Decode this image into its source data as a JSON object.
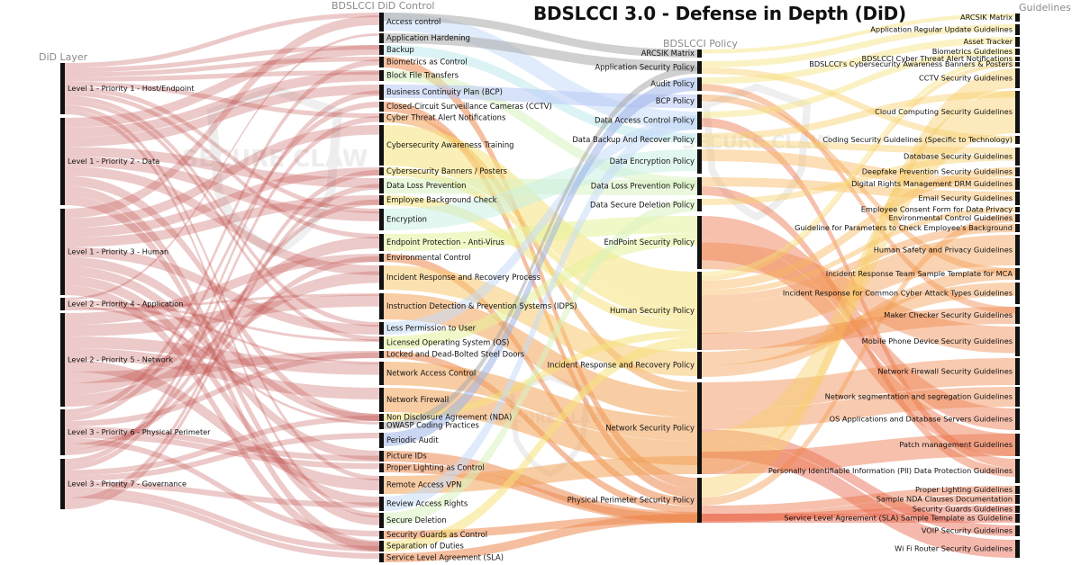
{
  "title": "BDSLCCI 3.0 - Defense in Depth (DiD)",
  "column_headers": {
    "layer": "DiD Layer",
    "control": "BDSLCCI DiD Control",
    "policy": "BDSLCCI Policy",
    "guideline": "Guidelines"
  },
  "watermark_text": "SECURE CLAW",
  "colors": {
    "layer_flow": "#c0504d",
    "node": "#111111",
    "policy_flows": [
      "#a9a9a9",
      "#9fb4e8",
      "#b8c9f5",
      "#c6ddf8",
      "#bfe9ec",
      "#c8f0e4",
      "#d8f2c0",
      "#e6f29a",
      "#f6e27a",
      "#f8c870",
      "#f2a45a",
      "#ec8a50"
    ]
  },
  "layers": [
    "Level 1 - Priority 1 - Host/Endpoint",
    "Level 1 - Priority 2 - Data",
    "Level 1 - Priority 3 - Human",
    "Level 2 - Priority 4 - Application",
    "Level 2 - Priority 5 - Network",
    "Level 3 - Priority 6 - Physical Perimeter",
    "Level 3 - Priority 7 - Governance"
  ],
  "controls": [
    "Access control",
    "Application Hardening",
    "Backup",
    "Biometrics as Control",
    "Block File Transfers",
    "Business Continuity Plan (BCP)",
    "Closed-Circuit Surveillance Cameras (CCTV)",
    "Cyber Threat Alert Notifications",
    "Cybersecurity Awareness Training",
    "Cybersecurity Banners / Posters",
    "Data Loss Prevention",
    "Employee Background Check",
    "Encryption",
    "Endpoint Protection - Anti-Virus",
    "Environmental Control",
    "Incident Response and Recovery Process",
    "Instruction Detection & Prevention Systems (IDPS)",
    "Less Permission to User",
    "Licensed Operating System (OS)",
    "Locked and Dead-Bolted Steel Doors",
    "Network Access Control",
    "Network Firewall",
    "Non Disclosure Agreement (NDA)",
    "OWASP Coding Practices",
    "Periodic Audit",
    "Picture IDs",
    "Proper Lighting as Control",
    "Remote Access VPN",
    "Review Access Rights",
    "Secure Deletion",
    "Security Guards as Control",
    "Separation of Duties",
    "Service Level Agreement (SLA)"
  ],
  "policies": [
    "ARCSIK Matrix",
    "Application Security Policy",
    "Audit Policy",
    "BCP Policy",
    "Data Access Control Policy",
    "Data Backup And Recover Policy",
    "Data Encryption Policy",
    "Data Loss Prevention Policy",
    "Data Secure Deletion Policy",
    "EndPoint Security Policy",
    "Human Security Policy",
    "Incident Response and Recovery Policy",
    "Network Security Policy",
    "Physical Perimeter Security Policy"
  ],
  "guidelines": [
    "ARCSIK Matrix",
    "Application Regular Update Guidelines",
    "Asset Tracker",
    "Biometrics Guidelines",
    "BDSLCCI Cyber Threat Alert Notifications",
    "BDSLCCI's Cybersecurity Awareness Banners & Posters",
    "CCTV Security Guidelines",
    "Cloud Computing Security Guidelines",
    "Coding Security Guidelines (Specific to Technology)",
    "Database Security Guidelines",
    "Deepfake Prevention Security Guidelines",
    "Digital Rights Management DRM Guidelines",
    "Email Security Guidelines",
    "Employee Consent Form for Data Privacy",
    "Environmental Control Guidelines",
    "Guideline for Parameters to Check Employee's Background",
    "Human Safety and Privacy Guidelines",
    "Incident Response Team Sample Template for MCA",
    "Incident Response for Common Cyber Attack Types Guidelines",
    "Maker Checker Security Guidelines",
    "Mobile Phone Device Security Guidelines",
    "Network Firewall Security Guidelines",
    "Network segmentation and segregation Guidelines",
    "OS Applications and Database Servers Guidelines",
    "Patch management Guidelines",
    "Personally Identifiable Information (PII) Data Protection Guidelines",
    "Proper Lighting Guidelines",
    "Sample NDA Clauses Documentation",
    "Security Guards Guidelines",
    "Service Level Agreement (SLA) Sample Template as Guideline",
    "VOIP Security Guidelines",
    "Wi Fi Router Security Guidelines"
  ]
}
